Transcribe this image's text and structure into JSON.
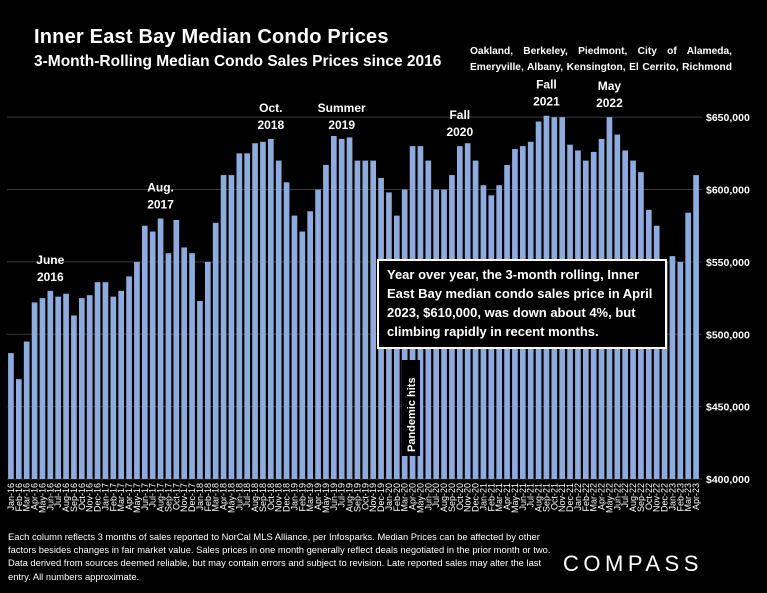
{
  "header": {
    "title": "Inner East Bay Median Condo Prices",
    "subtitle": "3-Month-Rolling Median Condo Sales Prices since 2016",
    "region_line1": "Oakland, Berkeley, Piedmont, City of Alameda,",
    "region_line2": "Emeryville, Albany, Kensington, El Cerrito, Richmond"
  },
  "callout": {
    "text": "Year over year, the 3-month rolling, Inner East Bay median condo sales price in April 2023, $610,000, was down about 4%, but climbing rapidly in recent months."
  },
  "footnote": {
    "text": "Each column reflects 3 months of sales reported to NorCal MLS Alliance, per Infosparks. Median Prices can be affected by other factors besides changes in fair market value. Sales prices in one month generally reflect deals negotiated in the prior month or two. Data derived from sources deemed reliable, but may contain errors and subject to revision. Late reported sales may alter the last entry. All numbers approximate."
  },
  "brand": {
    "logo_text": "COMPASS"
  },
  "colors": {
    "background": "#000000",
    "bar": "#8faadc",
    "text": "#ffffff",
    "grid": "#3a3a3a"
  },
  "chart_data": {
    "type": "bar",
    "title": "Inner East Bay Median Condo Prices",
    "subtitle": "3-Month-Rolling Median Condo Sales Prices since 2016",
    "ylim": [
      400000,
      675000
    ],
    "y_ticks": [
      400000,
      450000,
      500000,
      550000,
      600000,
      650000
    ],
    "y_tick_labels": [
      "$400,000",
      "$450,000",
      "$500,000",
      "$550,000",
      "$600,000",
      "$650,000"
    ],
    "y_axis_side": "right",
    "grid": true,
    "categories": [
      "Jan-16",
      "Feb-16",
      "Mar-16",
      "Apr-16",
      "May-16",
      "Jun-16",
      "Jul-16",
      "Aug-16",
      "Sep-16",
      "Oct-16",
      "Nov-16",
      "Dec-16",
      "Jan-17",
      "Feb-17",
      "Mar-17",
      "Apr-17",
      "May-17",
      "Jun-17",
      "Jul-17",
      "Aug-17",
      "Sep-17",
      "Oct-17",
      "Nov-17",
      "Dec-17",
      "Jan-18",
      "Feb-18",
      "Mar-18",
      "Apr-18",
      "May-18",
      "Jun-18",
      "Jul-18",
      "Aug-18",
      "Sep-18",
      "Oct-18",
      "Nov-18",
      "Dec-18",
      "Jan-19",
      "Feb-19",
      "Mar-19",
      "Apr-19",
      "May-19",
      "Jun-19",
      "Jul-19",
      "Aug-19",
      "Sep-19",
      "Oct-19",
      "Nov-19",
      "Dec-19",
      "Jan-20",
      "Feb-20",
      "Mar-20",
      "Apr-20",
      "May-20",
      "Jun-20",
      "Jul-20",
      "Aug-20",
      "Sep-20",
      "Oct-20",
      "Nov-20",
      "Dec-20",
      "Jan-21",
      "Feb-21",
      "Mar-21",
      "Apr-21",
      "May-21",
      "Jun-21",
      "Jul-21",
      "Aug-21",
      "Sep-21",
      "Oct-21",
      "Nov-21",
      "Dec-21",
      "Jan-22",
      "Feb-22",
      "Mar-22",
      "Apr-22",
      "May-22",
      "Jun-22",
      "Jul-22",
      "Aug-22",
      "Sep-22",
      "Oct-22",
      "Nov-22",
      "Dec-22",
      "Jan-23",
      "Feb-23",
      "Mar-23",
      "Apr-23"
    ],
    "values": [
      487000,
      469000,
      495000,
      522000,
      525000,
      530000,
      526000,
      528000,
      513000,
      525000,
      527000,
      536000,
      536000,
      526000,
      530000,
      540000,
      550000,
      575000,
      571000,
      580000,
      556000,
      579000,
      560000,
      556000,
      523000,
      550000,
      577000,
      610000,
      610000,
      625000,
      625000,
      632000,
      633000,
      635000,
      620000,
      605000,
      582000,
      571000,
      585000,
      600000,
      617000,
      637000,
      635000,
      636000,
      620000,
      620000,
      620000,
      608000,
      598000,
      582000,
      600000,
      630000,
      630000,
      620000,
      600000,
      600000,
      610000,
      630000,
      632000,
      620000,
      603000,
      596000,
      603000,
      617000,
      628000,
      630000,
      633000,
      647000,
      651000,
      650000,
      650000,
      631000,
      627000,
      620000,
      626000,
      635000,
      650000,
      638000,
      627000,
      620000,
      612000,
      586000,
      575000,
      550000,
      554000,
      550000,
      584000,
      610000
    ],
    "annotations": [
      {
        "label_lines": [
          "June",
          "2016"
        ],
        "category": "Jun-16"
      },
      {
        "label_lines": [
          "Aug.",
          "2017"
        ],
        "category": "Aug-17"
      },
      {
        "label_lines": [
          "Oct.",
          "2018"
        ],
        "category": "Oct-18"
      },
      {
        "label_lines": [
          "Summer",
          "2019"
        ],
        "category": "Jul-19"
      },
      {
        "label_lines": [
          "Fall",
          "2020"
        ],
        "category": "Oct-20"
      },
      {
        "label_lines": [
          "Fall",
          "2021"
        ],
        "category": "Sep-21"
      },
      {
        "label_lines": [
          "May",
          "2022"
        ],
        "category": "May-22"
      }
    ],
    "pandemic_label": "Pandemic hits",
    "pandemic_category": "Apr-20"
  }
}
